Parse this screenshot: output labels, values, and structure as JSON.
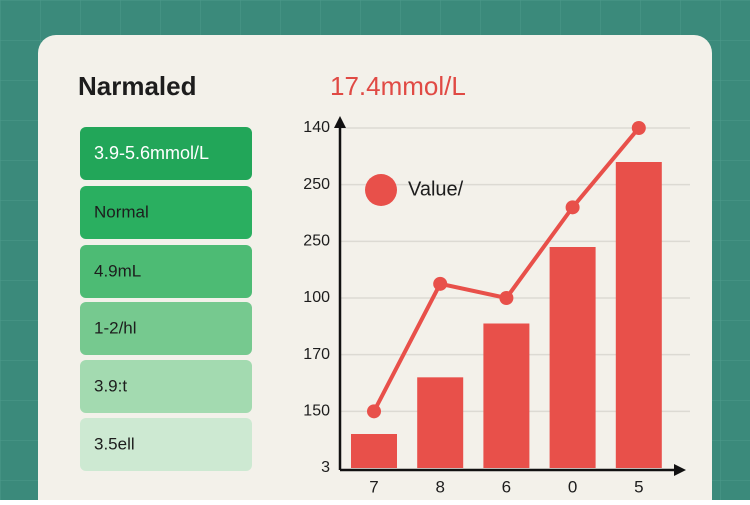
{
  "header": {
    "title": "Narmaled",
    "value": "17.4mmol/L"
  },
  "list": [
    "3.9-5.6mmol/L",
    "Normal",
    "4.9mL",
    "1-2/hl",
    "3.9:t",
    "3.5ell"
  ],
  "chart_data": {
    "type": "bar",
    "categories": [
      "7",
      "8",
      "6",
      "0",
      "5"
    ],
    "series": [
      {
        "name": "Value/",
        "type": "bar",
        "color": "#e8504a",
        "values": [
          0.6,
          1.6,
          2.55,
          3.9,
          5.4
        ]
      },
      {
        "type": "line",
        "color": "#e8504a",
        "values": [
          1.0,
          3.25,
          3.0,
          4.6,
          6.0
        ]
      }
    ],
    "ylim": [
      0,
      6.2
    ],
    "yticks": [
      {
        "value": 0,
        "label": "3"
      },
      {
        "value": 1,
        "label": "150"
      },
      {
        "value": 2,
        "label": "170"
      },
      {
        "value": 3,
        "label": "100"
      },
      {
        "value": 4,
        "label": "250"
      },
      {
        "value": 5,
        "label": "250"
      },
      {
        "value": 6,
        "label": "140"
      }
    ],
    "grid": true
  }
}
